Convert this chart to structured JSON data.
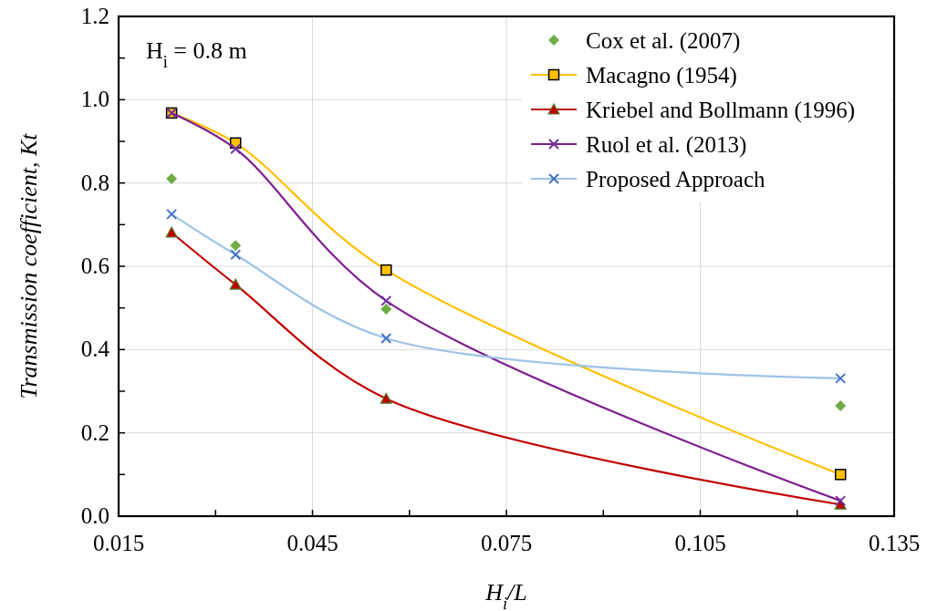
{
  "chart_data": {
    "type": "line",
    "xlabel": "H$_{i}$/L",
    "ylabel": "Transmission coefficient, Kt",
    "annotations": [
      "H$_{i}$ = 0.8 m"
    ],
    "x": [
      0.0232,
      0.0331,
      0.0564,
      0.1267
    ],
    "series": [
      {
        "name": "Cox et al. (2007)",
        "type": "scatter",
        "marker": "diamond",
        "color": "#70ad47",
        "values": [
          0.81,
          0.65,
          0.497,
          0.265
        ]
      },
      {
        "name": "Macagno (1954)",
        "marker": "square",
        "color": "#ffc000",
        "values": [
          0.968,
          0.896,
          0.591,
          0.1
        ]
      },
      {
        "name": "Kriebel and Bollmann (1996)",
        "marker": "triangle",
        "color": "#c00000",
        "values": [
          0.681,
          0.556,
          0.282,
          0.028
        ]
      },
      {
        "name": "Ruol et al. (2013)",
        "marker": "cross",
        "color": "#7f1f8f",
        "values": [
          0.968,
          0.882,
          0.517,
          0.037
        ]
      },
      {
        "name": "Proposed Approach",
        "marker": "cross",
        "color": "#9dc3e6",
        "values": [
          0.725,
          0.628,
          0.427,
          0.331
        ]
      }
    ],
    "xlim": [
      0.015,
      0.135
    ],
    "xticks": [
      0.015,
      {
        "value": 0.03,
        "label": null
      },
      0.045,
      {
        "value": 0.06,
        "label": null
      },
      0.075,
      {
        "value": 0.09,
        "label": null
      },
      0.105,
      {
        "value": 0.12,
        "label": null
      },
      0.135
    ],
    "ylim": [
      0,
      1.2
    ],
    "yticks": [
      "0.0",
      {
        "value": 0.1,
        "label": null
      },
      0.2,
      {
        "value": 0.3,
        "label": null
      },
      0.4,
      {
        "value": 0.5,
        "label": null
      },
      0.6,
      {
        "value": 0.7,
        "label": null
      },
      0.8,
      {
        "value": 0.9,
        "label": null
      },
      {
        "value": 1,
        "label": "1.0"
      },
      {
        "value": 1.1,
        "label": null
      },
      1.2
    ],
    "grid": true,
    "legend": "top right"
  }
}
